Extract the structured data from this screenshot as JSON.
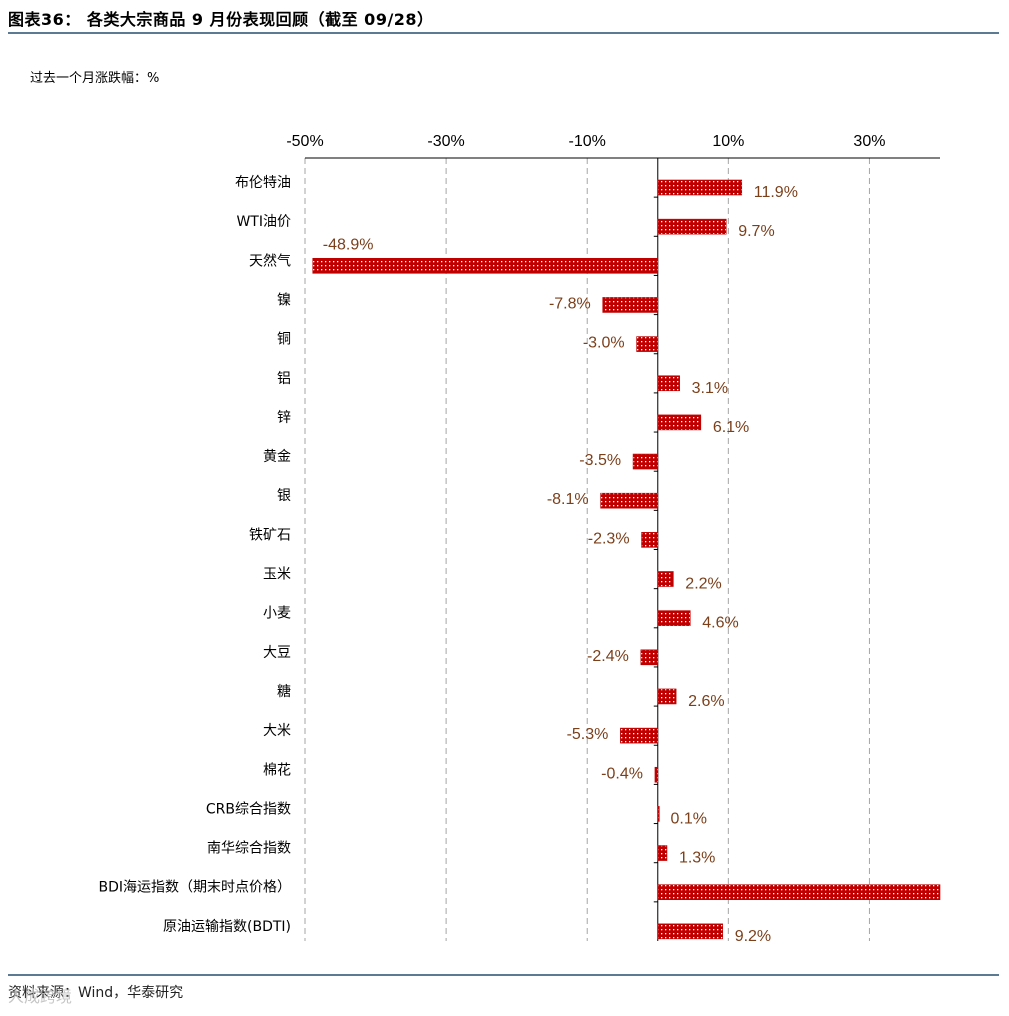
{
  "header": {
    "title": "图表36：  各类大宗商品 9 月份表现回顾（截至 09/28）"
  },
  "subtitle": "过去一个月涨跌幅：%",
  "footer": {
    "source": "资料来源：Wind，华泰研究",
    "watermark": "人成跨境"
  },
  "colors": {
    "bar": "#c00000",
    "label": "#7b3f1a",
    "grid": "#a6a6a6",
    "rule": "#5b7b93"
  },
  "chart_data": {
    "type": "bar",
    "orientation": "horizontal",
    "title": "",
    "xlabel": "",
    "ylabel": "",
    "xlim": [
      -50,
      40
    ],
    "x_ticks": [
      -50,
      -30,
      -10,
      10,
      30
    ],
    "x_tick_labels": [
      "-50%",
      "-30%",
      "-10%",
      "10%",
      "30%"
    ],
    "grid": "vertical dashed",
    "categories": [
      "布伦特油",
      "WTI油价",
      "天然气",
      "镍",
      "铜",
      "铝",
      "锌",
      "黄金",
      "银",
      "铁矿石",
      "玉米",
      "小麦",
      "大豆",
      "糖",
      "大米",
      "棉花",
      "CRB综合指数",
      "南华综合指数",
      "BDI海运指数（期末时点价格）",
      "原油运输指数(BDTI)"
    ],
    "values": [
      11.9,
      9.7,
      -48.9,
      -7.8,
      -3.0,
      3.1,
      6.1,
      -3.5,
      -8.1,
      -2.3,
      2.2,
      4.6,
      -2.4,
      2.6,
      -5.3,
      -0.4,
      0.1,
      1.3,
      40.0,
      9.2
    ],
    "data_labels": [
      "11.9%",
      "9.7%",
      "-48.9%",
      "-7.8%",
      "-3.0%",
      "3.1%",
      "6.1%",
      "-3.5%",
      "-8.1%",
      "-2.3%",
      "2.2%",
      "4.6%",
      "-2.4%",
      "2.6%",
      "-5.3%",
      "-0.4%",
      "0.1%",
      "1.3%",
      "",
      "9.2%"
    ]
  }
}
